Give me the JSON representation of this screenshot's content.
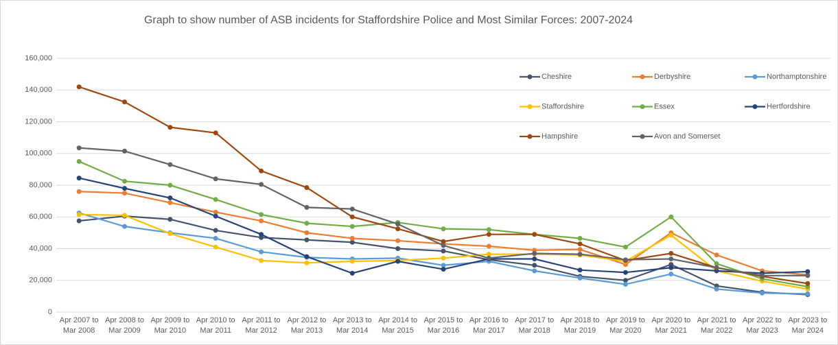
{
  "chart_data": {
    "type": "line",
    "title": "Graph to show number of ASB incidents for Staffordshire Police and Most Similar Forces: 2007-2024",
    "categories": [
      "Apr 2007 to Mar 2008",
      "Apr 2008 to Mar 2009",
      "Apr 2009 to Mar 2010",
      "Apr 2010 to Mar 2011",
      "Apr 2011 to Mar 2012",
      "Apr 2012 to Mar 2013",
      "Apr 2013 to Mar 2014",
      "Apr 2014 to Mar 2015",
      "Apr 2015 to Mar 2016",
      "Apr 2016 to Mar 2017",
      "Apr 2017 to Mar 2018",
      "Apr 2018 to Mar 2019",
      "Apr 2019 to Mar 2020",
      "Apr 2020 to Mar 2021",
      "Apr 2021 to Mar 2022",
      "Apr 2022 to Mar 2023",
      "Apr 2023 to Mar 2024"
    ],
    "series": [
      {
        "name": "Cheshire",
        "color": "#44546a",
        "values": [
          57500,
          60500,
          58500,
          51500,
          47000,
          45500,
          44000,
          40000,
          38500,
          33000,
          29500,
          22500,
          20000,
          30000,
          16500,
          12500,
          11000
        ]
      },
      {
        "name": "Derbyshire",
        "color": "#ed7d31",
        "values": [
          76000,
          75000,
          69000,
          63000,
          57500,
          50000,
          46500,
          45000,
          43000,
          41500,
          39000,
          39500,
          30000,
          50000,
          36000,
          26000,
          23500
        ]
      },
      {
        "name": "Northamptonshire",
        "color": "#5b9bd5",
        "values": [
          62500,
          54000,
          50000,
          46500,
          38000,
          34500,
          33500,
          34000,
          29500,
          32000,
          26000,
          21500,
          17500,
          24000,
          14500,
          12000,
          11500
        ]
      },
      {
        "name": "Staffordshire",
        "color": "#ffc000",
        "values": [
          61500,
          61000,
          49500,
          41000,
          32500,
          31000,
          32000,
          32500,
          34000,
          36500,
          36500,
          36000,
          32000,
          48500,
          26000,
          19500,
          14500
        ]
      },
      {
        "name": "Essex",
        "color": "#70ad47",
        "values": [
          95000,
          82500,
          80000,
          71000,
          61500,
          56000,
          54000,
          56500,
          52500,
          52000,
          49000,
          46500,
          41000,
          60000,
          30500,
          21000,
          16000
        ]
      },
      {
        "name": "Hertfordshire",
        "color": "#264478",
        "values": [
          84500,
          78000,
          72000,
          60500,
          49000,
          35000,
          24500,
          32000,
          27000,
          33500,
          33500,
          26500,
          25000,
          28000,
          26000,
          24500,
          25500
        ]
      },
      {
        "name": "Hampshire",
        "color": "#9e480e",
        "values": [
          142000,
          132500,
          116500,
          113000,
          89000,
          78500,
          60000,
          52500,
          44500,
          49000,
          49000,
          43000,
          32500,
          37000,
          28000,
          22500,
          18000
        ]
      },
      {
        "name": "Avon and Somerset",
        "color": "#636363",
        "values": [
          103500,
          101500,
          93000,
          84000,
          80500,
          66000,
          65000,
          55500,
          42000,
          34000,
          37000,
          36500,
          33000,
          33500,
          28000,
          23000,
          23000
        ]
      }
    ],
    "ylim": [
      0,
      160000
    ],
    "yticks": [
      0,
      {
        "value": 20000,
        "label": "20,000"
      },
      {
        "value": 40000,
        "label": "40,000"
      },
      {
        "value": 60000,
        "label": "60,000"
      },
      {
        "value": 80000,
        "label": "80,000"
      },
      {
        "value": 100000,
        "label": "100,000"
      },
      {
        "value": 120000,
        "label": "120,000"
      },
      {
        "value": 140000,
        "label": "140,000"
      },
      {
        "value": 160000,
        "label": "160,000"
      }
    ],
    "grid": true,
    "legend": "top-right"
  }
}
